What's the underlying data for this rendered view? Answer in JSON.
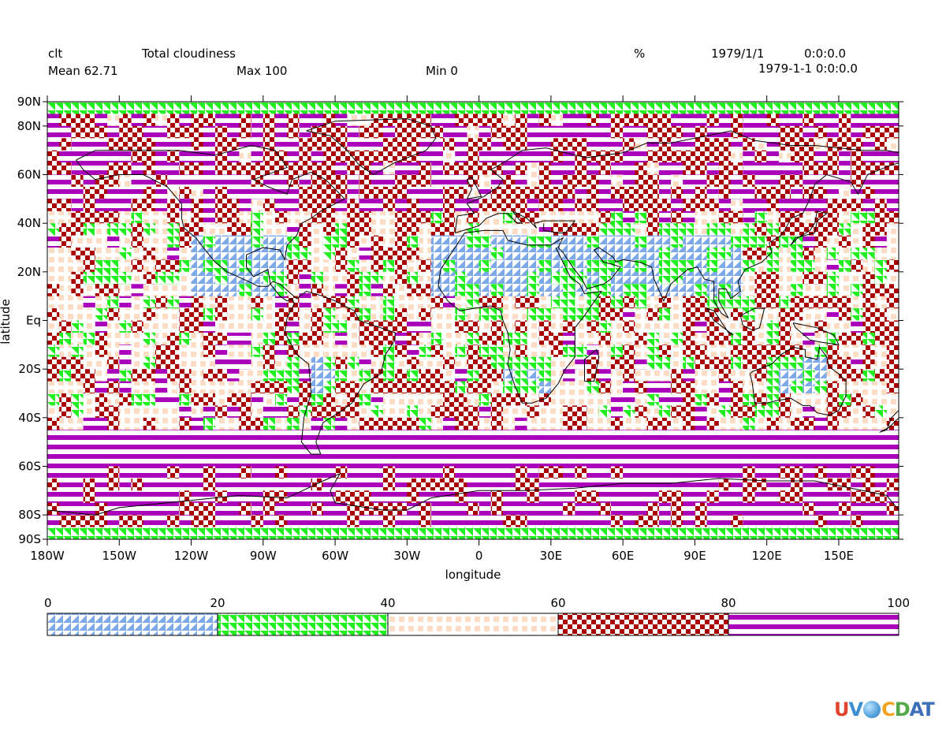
{
  "header": {
    "variable": "clt",
    "long_name": "Total cloudiness",
    "units": "%",
    "date": "1979/1/1",
    "time": "0:0:0.0",
    "datetime": "1979-1-1 0:0:0.0",
    "mean_label": "Mean 62.71",
    "max_label": "Max 100",
    "min_label": "Min 0"
  },
  "axes": {
    "ylabel": "latitude",
    "xlabel": "longitude",
    "lat_ticks": [
      "90N",
      "80N",
      "60N",
      "40N",
      "20N",
      "Eq",
      "20S",
      "40S",
      "60S",
      "80S",
      "90S"
    ],
    "lat_values": [
      90,
      80,
      60,
      40,
      20,
      0,
      -20,
      -40,
      -60,
      -80,
      -90
    ],
    "lon_ticks": [
      "180W",
      "150W",
      "120W",
      "90W",
      "60W",
      "30W",
      "0",
      "30E",
      "60E",
      "90E",
      "120E",
      "150E"
    ],
    "lon_values": [
      -180,
      -150,
      -120,
      -90,
      -60,
      -30,
      0,
      30,
      60,
      90,
      120,
      150
    ],
    "lon_range": [
      -180,
      175
    ],
    "lat_range": [
      -90,
      90
    ]
  },
  "legend": {
    "levels": [
      "0",
      "20",
      "40",
      "60",
      "80",
      "100"
    ],
    "bins": [
      {
        "range": [
          0,
          20
        ],
        "pattern": "triangles",
        "color": "#7fa8e8"
      },
      {
        "range": [
          20,
          40
        ],
        "pattern": "triangles",
        "color": "#22ee22"
      },
      {
        "range": [
          40,
          60
        ],
        "pattern": "dots",
        "color": "#ffdcc4"
      },
      {
        "range": [
          60,
          80
        ],
        "pattern": "checker",
        "color": "#aa0000"
      },
      {
        "range": [
          80,
          100
        ],
        "pattern": "stripes",
        "color": "#aa00bb"
      }
    ]
  },
  "logo": {
    "t1": "U",
    "t2": "V",
    "t3": "C",
    "t4": "D",
    "t5": "AT"
  }
}
